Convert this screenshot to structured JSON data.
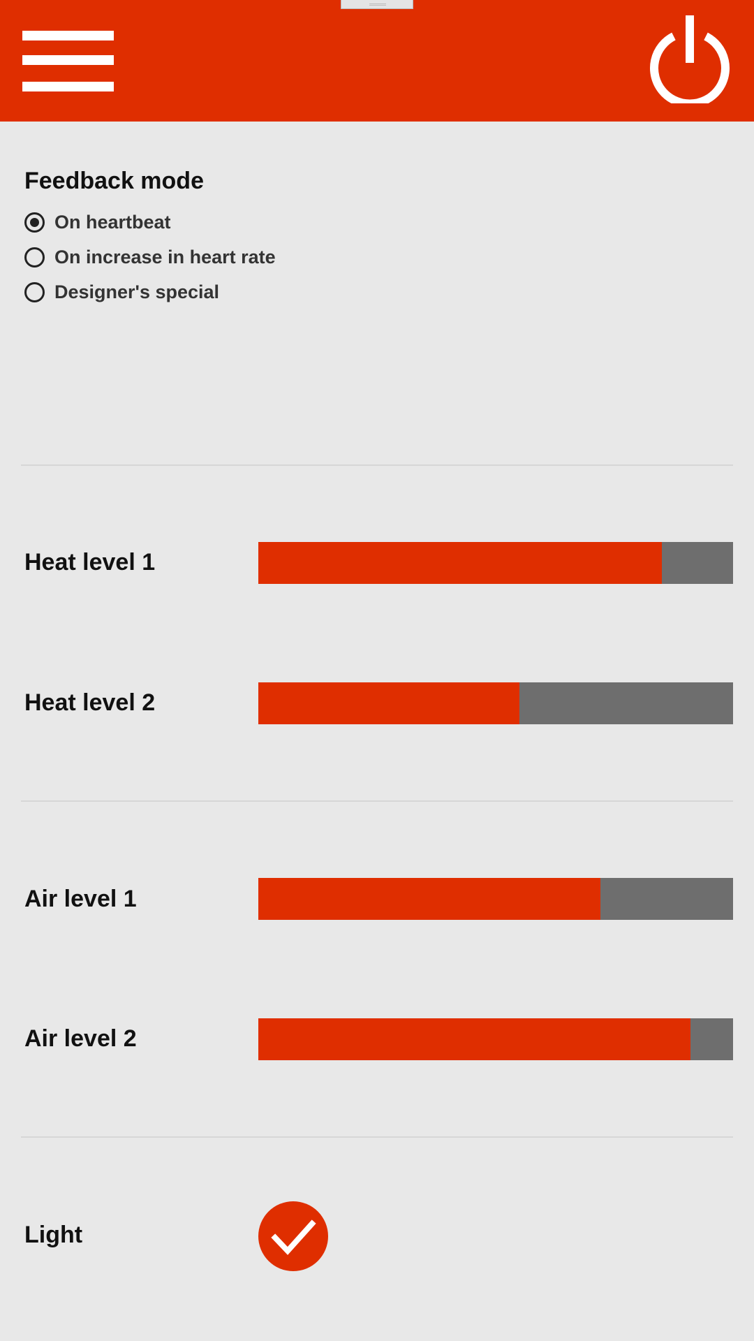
{
  "theme": {
    "accent": "#df2e00",
    "track": "#6e6e6e",
    "background": "#e8e8e8"
  },
  "header": {
    "menu_icon": "hamburger-menu-icon",
    "power_icon": "power-icon"
  },
  "feedback": {
    "title": "Feedback mode",
    "options": [
      {
        "label": "On heartbeat",
        "selected": true
      },
      {
        "label": "On increase in heart rate",
        "selected": false
      },
      {
        "label": "Designer's special",
        "selected": false
      }
    ]
  },
  "heat": {
    "levels": [
      {
        "label": "Heat level 1",
        "value": 0.85
      },
      {
        "label": "Heat level 2",
        "value": 0.55
      }
    ]
  },
  "air": {
    "levels": [
      {
        "label": "Air level 1",
        "value": 0.72
      },
      {
        "label": "Air level 2",
        "value": 0.91
      }
    ]
  },
  "light": {
    "label": "Light",
    "checked": true,
    "icon": "checkmark-icon"
  }
}
